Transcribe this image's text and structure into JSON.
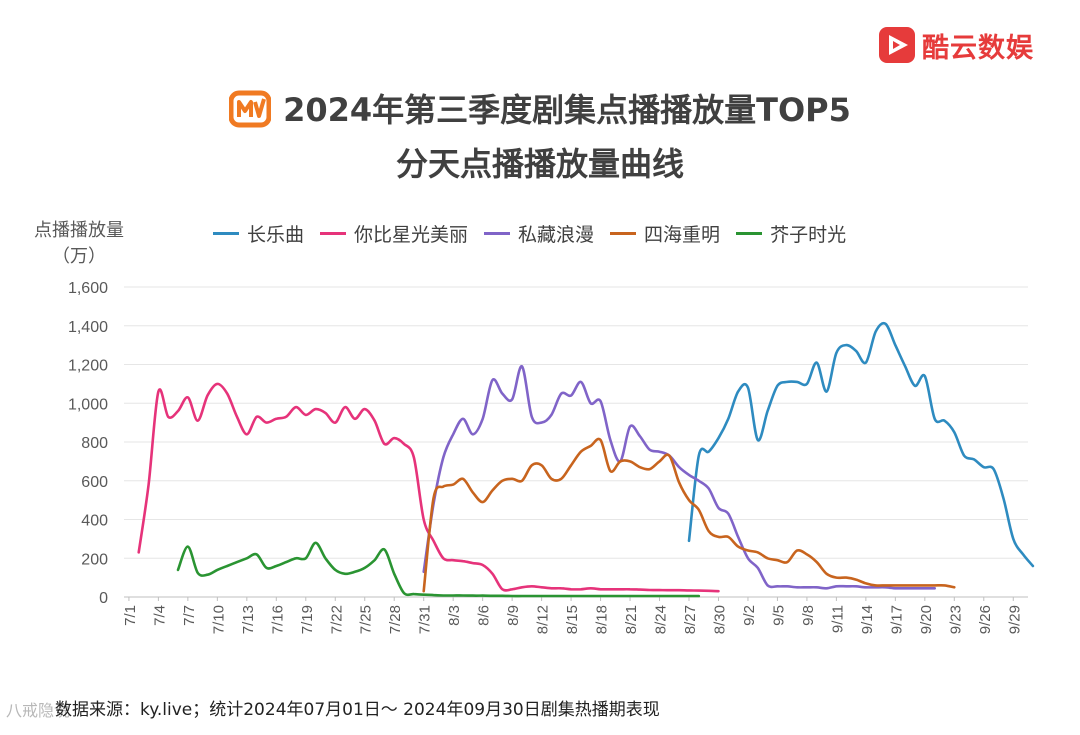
{
  "brand": {
    "name": "酷云数娱",
    "icon": "kuyun-play-icon",
    "color": "#e63b3b"
  },
  "title": {
    "line1": "2024年第三季度剧集点播播放量TOP5",
    "line2": "分天点播播放量曲线",
    "platform_icon": "mango-tv-logo-icon"
  },
  "source": "数据来源：ky.live；统计2024年07月01日～ 2024年09月30日剧集热播期表现",
  "watermark": "八戒隐说",
  "chart_data": {
    "type": "line",
    "ylabel_line1": "点播播放量",
    "ylabel_line2": "（万）",
    "ylim": [
      0,
      1600
    ],
    "yticks": [
      0,
      200,
      400,
      600,
      800,
      1000,
      1200,
      1400,
      1600
    ],
    "ytick_labels": [
      "0",
      "200",
      "400",
      "600",
      "800",
      "1,000",
      "1,200",
      "1,400",
      "1,600"
    ],
    "xlim": [
      1,
      92
    ],
    "xticks": [
      1,
      4,
      7,
      10,
      13,
      16,
      19,
      22,
      25,
      28,
      31,
      34,
      37,
      40,
      43,
      46,
      49,
      52,
      55,
      58,
      61,
      64,
      67,
      70,
      73,
      76,
      79,
      82,
      85,
      88,
      91
    ],
    "xtick_labels": [
      "7/1",
      "7/4",
      "7/7",
      "7/10",
      "7/13",
      "7/16",
      "7/19",
      "7/22",
      "7/25",
      "7/28",
      "7/31",
      "8/3",
      "8/6",
      "8/9",
      "8/12",
      "8/15",
      "8/18",
      "8/21",
      "8/24",
      "8/27",
      "8/30",
      "9/2",
      "9/5",
      "9/8",
      "9/11",
      "9/14",
      "9/17",
      "9/20",
      "9/23",
      "9/26",
      "9/29"
    ],
    "series": [
      {
        "name": "长乐曲",
        "color": "#2e8bc0",
        "start": 58,
        "values": [
          290,
          730,
          750,
          820,
          920,
          1060,
          1080,
          810,
          960,
          1090,
          1110,
          1110,
          1100,
          1210,
          1060,
          1260,
          1300,
          1270,
          1210,
          1370,
          1410,
          1300,
          1190,
          1090,
          1140,
          920,
          910,
          850,
          730,
          710,
          670,
          660,
          510,
          300,
          220,
          160
        ]
      },
      {
        "name": "你比星光美丽",
        "color": "#e6337a",
        "start": 2,
        "values": [
          230,
          580,
          1060,
          930,
          960,
          1030,
          910,
          1040,
          1100,
          1050,
          930,
          840,
          930,
          900,
          920,
          930,
          980,
          940,
          970,
          950,
          900,
          980,
          920,
          970,
          910,
          790,
          820,
          790,
          720,
          400,
          290,
          200,
          190,
          185,
          175,
          165,
          120,
          40,
          40,
          50,
          55,
          50,
          45,
          45,
          40,
          40,
          45,
          40,
          40,
          40,
          40,
          38,
          36,
          36,
          35,
          35,
          34,
          33,
          32,
          30
        ]
      },
      {
        "name": "私藏浪漫",
        "color": "#8064c8",
        "start": 31,
        "values": [
          130,
          480,
          720,
          840,
          920,
          840,
          920,
          1120,
          1050,
          1020,
          1190,
          930,
          900,
          940,
          1050,
          1040,
          1110,
          1000,
          1010,
          810,
          700,
          880,
          830,
          760,
          750,
          730,
          670,
          630,
          600,
          560,
          460,
          430,
          310,
          200,
          150,
          60,
          55,
          55,
          50,
          50,
          50,
          45,
          55,
          55,
          55,
          50,
          50,
          50,
          45,
          45,
          45,
          45,
          45
        ]
      },
      {
        "name": "四海重明",
        "color": "#c8641e",
        "start": 31,
        "values": [
          30,
          510,
          570,
          580,
          610,
          540,
          490,
          550,
          600,
          610,
          600,
          680,
          680,
          610,
          610,
          680,
          750,
          780,
          810,
          650,
          700,
          700,
          670,
          660,
          700,
          730,
          590,
          500,
          450,
          340,
          310,
          310,
          260,
          240,
          230,
          200,
          190,
          180,
          240,
          220,
          180,
          120,
          100,
          100,
          90,
          70,
          60,
          60,
          60,
          60,
          60,
          60,
          60,
          60,
          50
        ]
      },
      {
        "name": "芥子时光",
        "color": "#2a9432",
        "start": 6,
        "values": [
          140,
          260,
          125,
          115,
          140,
          160,
          180,
          200,
          220,
          150,
          160,
          180,
          200,
          200,
          280,
          200,
          140,
          120,
          130,
          150,
          190,
          245,
          120,
          20,
          15,
          12,
          10,
          8,
          8,
          8,
          7,
          7,
          6,
          6,
          5,
          5,
          5,
          5,
          5,
          5,
          5,
          5,
          5,
          5,
          5,
          5,
          5,
          5,
          5,
          5,
          5,
          5,
          5,
          5
        ]
      }
    ]
  }
}
